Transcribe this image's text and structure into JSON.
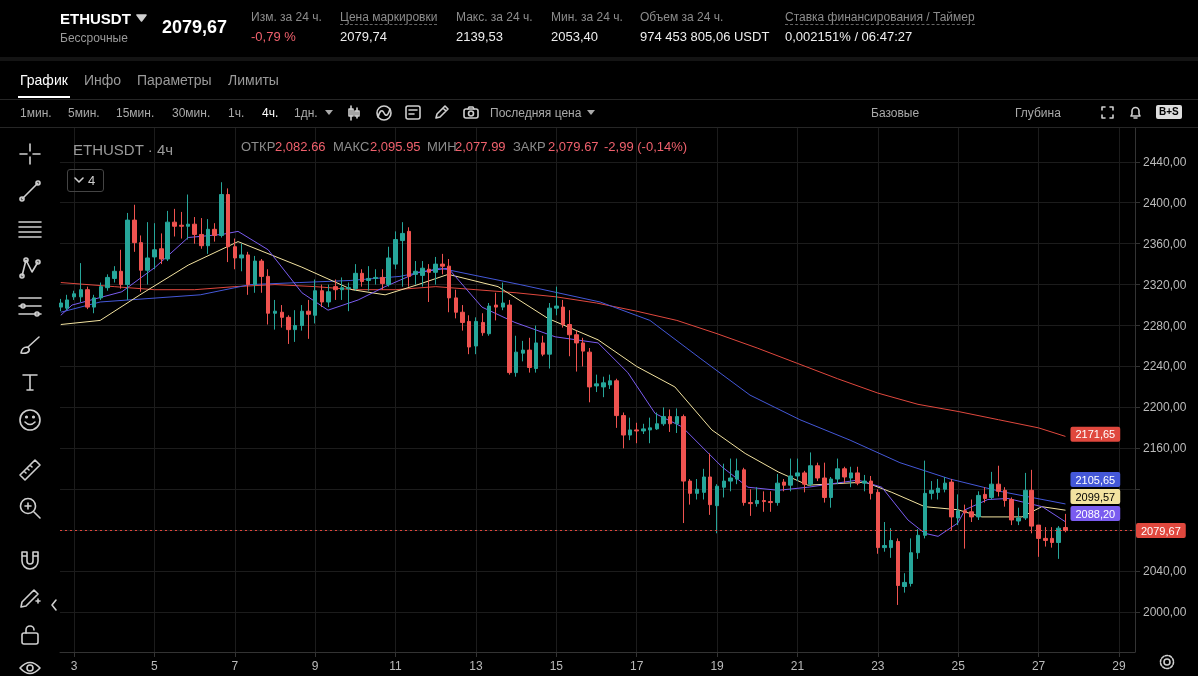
{
  "chart_data": {
    "type": "candlestick",
    "title": "ETHUSDT · 4ч",
    "annotations": [
      "ETHUSDT",
      "Бессрочные",
      "2079,67",
      "Изм. за 24 ч.",
      "-0,79 %",
      "Цена маркировки",
      "2079,74",
      "Макс. за 24 ч.",
      "2139,53",
      "Мин. за 24 ч.",
      "2053,40",
      "Объем за 24 ч.",
      "974 453 805,06 USDT",
      "Ставка финансирования / Таймер",
      "0,002151% / 06:47:27",
      "График",
      "Инфо",
      "Параметры",
      "Лимиты",
      "1мин.",
      "5мин.",
      "15мин.",
      "30мин.",
      "1ч.",
      "4ч.",
      "1дн.",
      "Последняя цена",
      "Базовые",
      "Глубина",
      "ОТКР",
      "2,082.66",
      "МАКС",
      "2,095.95",
      "МИН",
      "2,077.99",
      "ЗАКР",
      "2,079.67",
      "-2,99 (-0,14%)",
      "4",
      "B+S"
    ],
    "x": [
      2.67,
      2.83,
      3,
      3.17,
      3.33,
      3.5,
      3.67,
      3.83,
      4,
      4.17,
      4.33,
      4.5,
      4.67,
      4.83,
      5,
      5.17,
      5.33,
      5.5,
      5.67,
      5.83,
      6,
      6.17,
      6.33,
      6.5,
      6.67,
      6.83,
      7,
      7.17,
      7.33,
      7.5,
      7.67,
      7.83,
      8,
      8.17,
      8.33,
      8.5,
      8.67,
      8.83,
      9,
      9.17,
      9.33,
      9.5,
      9.67,
      9.83,
      10,
      10.17,
      10.33,
      10.5,
      10.67,
      10.83,
      11,
      11.17,
      11.33,
      11.5,
      11.67,
      11.83,
      12,
      12.17,
      12.33,
      12.5,
      12.67,
      12.83,
      13,
      13.17,
      13.33,
      13.5,
      13.67,
      13.83,
      14,
      14.17,
      14.33,
      14.5,
      14.67,
      14.83,
      15,
      15.17,
      15.33,
      15.5,
      15.67,
      15.83,
      16,
      16.17,
      16.33,
      16.5,
      16.67,
      16.83,
      17,
      17.17,
      17.33,
      17.5,
      17.67,
      17.83,
      18,
      18.17,
      18.33,
      18.5,
      18.67,
      18.83,
      19,
      19.17,
      19.33,
      19.5,
      19.67,
      19.83,
      20,
      20.17,
      20.33,
      20.5,
      20.67,
      20.83,
      21,
      21.17,
      21.33,
      21.5,
      21.67,
      21.83,
      22,
      22.17,
      22.33,
      22.5,
      22.67,
      22.83,
      23,
      23.17,
      23.33,
      23.5,
      23.67,
      23.83,
      24,
      24.17,
      24.33,
      24.5,
      24.67,
      24.83,
      25,
      25.17,
      25.33,
      25.5,
      25.67,
      25.83,
      26,
      26.17,
      26.33,
      26.5,
      26.67,
      26.83,
      27,
      27.17,
      27.33,
      27.5,
      27.67
    ],
    "ohlc": [
      [
        2298,
        2306,
        2294,
        2302
      ],
      [
        2297,
        2310,
        2295,
        2305
      ],
      [
        2308,
        2314,
        2305,
        2311
      ],
      [
        2308,
        2341,
        2303,
        2315
      ],
      [
        2315,
        2318,
        2296,
        2298
      ],
      [
        2298,
        2310,
        2292,
        2307
      ],
      [
        2307,
        2322,
        2305,
        2318
      ],
      [
        2317,
        2330,
        2314,
        2327
      ],
      [
        2326,
        2338,
        2322,
        2333
      ],
      [
        2333,
        2354,
        2316,
        2320
      ],
      [
        2320,
        2390,
        2305,
        2383
      ],
      [
        2383,
        2398,
        2352,
        2361
      ],
      [
        2361,
        2368,
        2313,
        2334
      ],
      [
        2334,
        2381,
        2320,
        2346
      ],
      [
        2347,
        2380,
        2335,
        2354
      ],
      [
        2355,
        2370,
        2340,
        2345
      ],
      [
        2345,
        2392,
        2343,
        2381
      ],
      [
        2381,
        2394,
        2367,
        2377
      ],
      [
        2378,
        2391,
        2365,
        2377
      ],
      [
        2377,
        2408,
        2364,
        2379
      ],
      [
        2379,
        2386,
        2360,
        2369
      ],
      [
        2369,
        2385,
        2355,
        2358
      ],
      [
        2358,
        2384,
        2350,
        2374
      ],
      [
        2374,
        2380,
        2362,
        2368
      ],
      [
        2368,
        2420,
        2366,
        2408
      ],
      [
        2408,
        2414,
        2342,
        2357
      ],
      [
        2357,
        2365,
        2335,
        2346
      ],
      [
        2346,
        2360,
        2333,
        2349
      ],
      [
        2349,
        2352,
        2310,
        2320
      ],
      [
        2320,
        2348,
        2312,
        2343
      ],
      [
        2343,
        2345,
        2312,
        2328
      ],
      [
        2328,
        2335,
        2281,
        2292
      ],
      [
        2292,
        2305,
        2276,
        2294
      ],
      [
        2293,
        2300,
        2278,
        2288
      ],
      [
        2288,
        2290,
        2262,
        2276
      ],
      [
        2276,
        2295,
        2264,
        2280
      ],
      [
        2280,
        2300,
        2275,
        2294
      ],
      [
        2294,
        2305,
        2267,
        2291
      ],
      [
        2290,
        2325,
        2282,
        2314
      ],
      [
        2314,
        2320,
        2298,
        2303
      ],
      [
        2303,
        2320,
        2298,
        2313
      ],
      [
        2318,
        2325,
        2305,
        2315
      ],
      [
        2315,
        2327,
        2305,
        2317
      ],
      [
        2316,
        2322,
        2294,
        2317
      ],
      [
        2316,
        2340,
        2314,
        2331
      ],
      [
        2331,
        2335,
        2318,
        2323
      ],
      [
        2324,
        2338,
        2314,
        2326
      ],
      [
        2326,
        2335,
        2320,
        2327
      ],
      [
        2327,
        2335,
        2315,
        2321
      ],
      [
        2320,
        2357,
        2318,
        2346
      ],
      [
        2340,
        2372,
        2335,
        2364
      ],
      [
        2363,
        2381,
        2318,
        2370
      ],
      [
        2372,
        2376,
        2318,
        2328
      ],
      [
        2330,
        2343,
        2320,
        2333
      ],
      [
        2329,
        2343,
        2318,
        2336
      ],
      [
        2335,
        2340,
        2303,
        2332
      ],
      [
        2332,
        2347,
        2320,
        2340
      ],
      [
        2340,
        2350,
        2330,
        2338
      ],
      [
        2338,
        2345,
        2293,
        2307
      ],
      [
        2307,
        2315,
        2287,
        2293
      ],
      [
        2293,
        2300,
        2275,
        2283
      ],
      [
        2284,
        2290,
        2252,
        2259
      ],
      [
        2260,
        2288,
        2252,
        2284
      ],
      [
        2283,
        2292,
        2270,
        2273
      ],
      [
        2272,
        2302,
        2270,
        2299
      ],
      [
        2300,
        2312,
        2285,
        2298
      ],
      [
        2298,
        2322,
        2295,
        2302
      ],
      [
        2300,
        2305,
        2232,
        2234
      ],
      [
        2234,
        2270,
        2230,
        2254
      ],
      [
        2253,
        2265,
        2245,
        2256
      ],
      [
        2256,
        2268,
        2234,
        2239
      ],
      [
        2238,
        2280,
        2234,
        2263
      ],
      [
        2263,
        2270,
        2250,
        2252
      ],
      [
        2252,
        2302,
        2238,
        2297
      ],
      [
        2297,
        2318,
        2290,
        2299
      ],
      [
        2298,
        2305,
        2278,
        2281
      ],
      [
        2281,
        2295,
        2250,
        2271
      ],
      [
        2271,
        2275,
        2235,
        2263
      ],
      [
        2263,
        2268,
        2240,
        2255
      ],
      [
        2254,
        2258,
        2205,
        2220
      ],
      [
        2221,
        2232,
        2215,
        2223
      ],
      [
        2220,
        2230,
        2210,
        2224
      ],
      [
        2222,
        2232,
        2218,
        2226
      ],
      [
        2226,
        2228,
        2180,
        2192
      ],
      [
        2192,
        2195,
        2160,
        2173
      ],
      [
        2173,
        2190,
        2168,
        2178
      ],
      [
        2178,
        2185,
        2165,
        2177
      ],
      [
        2177,
        2184,
        2174,
        2179
      ],
      [
        2178,
        2190,
        2165,
        2180
      ],
      [
        2179,
        2195,
        2178,
        2184
      ],
      [
        2184,
        2200,
        2182,
        2191
      ],
      [
        2191,
        2198,
        2176,
        2184
      ],
      [
        2184,
        2199,
        2175,
        2191
      ],
      [
        2191,
        2193,
        2087,
        2128
      ],
      [
        2128,
        2130,
        2105,
        2116
      ],
      [
        2116,
        2130,
        2110,
        2120
      ],
      [
        2117,
        2140,
        2110,
        2132
      ],
      [
        2132,
        2155,
        2095,
        2105
      ],
      [
        2104,
        2125,
        2077,
        2123
      ],
      [
        2122,
        2145,
        2112,
        2128
      ],
      [
        2128,
        2150,
        2118,
        2131
      ],
      [
        2130,
        2150,
        2125,
        2138
      ],
      [
        2139,
        2141,
        2104,
        2107
      ],
      [
        2107,
        2120,
        2094,
        2106
      ],
      [
        2106,
        2122,
        2103,
        2109
      ],
      [
        2109,
        2118,
        2098,
        2108
      ],
      [
        2108,
        2118,
        2098,
        2107
      ],
      [
        2107,
        2135,
        2104,
        2126
      ],
      [
        2127,
        2130,
        2118,
        2124
      ],
      [
        2124,
        2150,
        2118,
        2133
      ],
      [
        2133,
        2150,
        2128,
        2136
      ],
      [
        2136,
        2138,
        2117,
        2125
      ],
      [
        2125,
        2156,
        2123,
        2143
      ],
      [
        2143,
        2146,
        2128,
        2131
      ],
      [
        2131,
        2146,
        2107,
        2112
      ],
      [
        2112,
        2132,
        2102,
        2130
      ],
      [
        2130,
        2150,
        2125,
        2140
      ],
      [
        2140,
        2142,
        2126,
        2132
      ],
      [
        2131,
        2142,
        2122,
        2136
      ],
      [
        2136,
        2142,
        2124,
        2126
      ],
      [
        2126,
        2134,
        2118,
        2128
      ],
      [
        2128,
        2133,
        2110,
        2116
      ],
      [
        2117,
        2120,
        2057,
        2063
      ],
      [
        2063,
        2088,
        2059,
        2065
      ],
      [
        2063,
        2082,
        2053,
        2070
      ],
      [
        2069,
        2072,
        2007,
        2026
      ],
      [
        2025,
        2038,
        2019,
        2029
      ],
      [
        2028,
        2072,
        2025,
        2058
      ],
      [
        2058,
        2081,
        2052,
        2075
      ],
      [
        2075,
        2148,
        2072,
        2116
      ],
      [
        2116,
        2128,
        2110,
        2119
      ],
      [
        2117,
        2130,
        2110,
        2121
      ],
      [
        2120,
        2132,
        2117,
        2126
      ],
      [
        2127,
        2130,
        2080,
        2093
      ],
      [
        2092,
        2115,
        2085,
        2099
      ],
      [
        2099,
        2105,
        2062,
        2097
      ],
      [
        2098,
        2110,
        2088,
        2093
      ],
      [
        2093,
        2118,
        2090,
        2114
      ],
      [
        2115,
        2122,
        2107,
        2111
      ],
      [
        2112,
        2137,
        2110,
        2125
      ],
      [
        2125,
        2143,
        2113,
        2118
      ],
      [
        2119,
        2122,
        2103,
        2109
      ],
      [
        2110,
        2112,
        2085,
        2090
      ],
      [
        2089,
        2102,
        2085,
        2092
      ],
      [
        2092,
        2136,
        2090,
        2119
      ],
      [
        2119,
        2139,
        2077,
        2084
      ],
      [
        2085,
        2085,
        2054,
        2072
      ],
      [
        2072,
        2083,
        2064,
        2070
      ],
      [
        2072,
        2083,
        2063,
        2068
      ],
      [
        2068,
        2084,
        2052,
        2082
      ],
      [
        2082.66,
        2095.95,
        2077.99,
        2079.67
      ]
    ],
    "series": [
      {
        "type": "line",
        "color": "#e0483e",
        "x": [
          2.67,
          4,
          5,
          6,
          7,
          8,
          9,
          10,
          11,
          12,
          13,
          14,
          15,
          16,
          17,
          18,
          19,
          20,
          21,
          22,
          23,
          24,
          25,
          26,
          27,
          27.67
        ],
        "values": [
          2322,
          2318,
          2315,
          2315,
          2318,
          2320,
          2318,
          2315,
          2315,
          2318,
          2315,
          2312,
          2308,
          2302,
          2294,
          2285,
          2272,
          2258,
          2243,
          2228,
          2214,
          2203,
          2196,
          2188,
          2180,
          2171.65
        ],
        "value_labels": [
          null,
          null,
          null,
          null,
          null,
          null,
          null,
          null,
          null,
          null,
          null,
          null,
          null,
          null,
          null,
          null,
          null,
          null,
          null,
          null,
          null,
          null,
          null,
          null,
          null,
          "2171,65"
        ]
      },
      {
        "type": "line",
        "color": "#4458d8",
        "x": [
          2.67,
          3.65,
          6.14,
          7.38,
          8.62,
          9.87,
          11.11,
          12.11,
          13.1,
          14.1,
          16.09,
          17.33,
          18.58,
          19.82,
          21.06,
          22.31,
          23.55,
          24.8,
          26.04,
          27.67
        ],
        "values": [
          2293,
          2303,
          2310,
          2320,
          2322,
          2324,
          2328,
          2336,
          2328,
          2320,
          2303,
          2285,
          2248,
          2212,
          2188,
          2168,
          2146,
          2130,
          2118,
          2105.65
        ],
        "value_labels": [
          null,
          null,
          null,
          null,
          null,
          null,
          null,
          null,
          null,
          null,
          null,
          null,
          null,
          null,
          null,
          null,
          null,
          null,
          null,
          "2105,65"
        ]
      },
      {
        "type": "line",
        "color": "#f3e3a0",
        "x": [
          2.67,
          3.65,
          4.64,
          5.84,
          7.08,
          8.67,
          9.92,
          10.74,
          11.56,
          12.31,
          13.55,
          14.79,
          16.04,
          17,
          17.95,
          18.87,
          19.7,
          20.52,
          21.26,
          22.68,
          23.35,
          24.17,
          24.99,
          25.59,
          26.59,
          27.08,
          27.67
        ],
        "values": [
          2281,
          2285,
          2310,
          2339,
          2362,
          2337,
          2315,
          2310,
          2320,
          2330,
          2318,
          2287,
          2266,
          2240,
          2220,
          2178,
          2155,
          2137,
          2124,
          2127,
          2117,
          2103,
          2100,
          2093,
          2093,
          2103,
          2099.57
        ],
        "value_labels": [
          null,
          null,
          null,
          null,
          null,
          null,
          null,
          null,
          null,
          null,
          null,
          null,
          null,
          null,
          null,
          null,
          null,
          null,
          null,
          null,
          null,
          null,
          null,
          null,
          null,
          null,
          "2099,57"
        ]
      },
      {
        "type": "line",
        "color": "#7a5cf0",
        "x": [
          2.67,
          2.95,
          4.19,
          5.02,
          5.84,
          6.68,
          7.08,
          7.83,
          8.67,
          9.32,
          10.07,
          10.74,
          11.56,
          12.31,
          13.15,
          13.97,
          14.97,
          16.04,
          16.78,
          17.46,
          18.13,
          19.12,
          19.77,
          20.52,
          21.26,
          22.51,
          23.1,
          23.75,
          24.17,
          24.5,
          24.99,
          25.17,
          25.74,
          26.24,
          27.09,
          27.67
        ],
        "values": [
          2290,
          2300,
          2313,
          2337,
          2366,
          2369,
          2372,
          2354,
          2312,
          2295,
          2305,
          2318,
          2332,
          2336,
          2298,
          2283,
          2269,
          2263,
          2234,
          2194,
          2181,
          2142,
          2122,
          2119,
          2122,
          2129,
          2122,
          2090,
          2077,
          2074,
          2087,
          2100,
          2110,
          2111,
          2103,
          2088.2
        ],
        "value_labels": [
          null,
          null,
          null,
          null,
          null,
          null,
          null,
          null,
          null,
          null,
          null,
          null,
          null,
          null,
          null,
          null,
          null,
          null,
          null,
          null,
          null,
          null,
          null,
          null,
          null,
          null,
          null,
          null,
          null,
          null,
          null,
          null,
          null,
          null,
          null,
          "2088,20"
        ]
      }
    ],
    "ref_lines": [
      {
        "axis": "y",
        "value": 2079.67,
        "label": "2079,67",
        "color": "#e0483e",
        "line_style": "dotted"
      }
    ],
    "xlim": [
      2.65,
      29.4
    ],
    "xticks": [
      3,
      5,
      7,
      9,
      11,
      13,
      15,
      17,
      19,
      21,
      23,
      25,
      27,
      29
    ],
    "ylim": [
      1961,
      2473
    ],
    "yticks": [
      {
        "value": 2000,
        "label": "2000,00"
      },
      {
        "value": 2040,
        "label": "2040,00"
      },
      {
        "value": 2080,
        "label": null
      },
      {
        "value": 2120,
        "label": null
      },
      {
        "value": 2160,
        "label": "2160,00"
      },
      {
        "value": 2200,
        "label": "2200,00"
      },
      {
        "value": 2240,
        "label": "2240,00"
      },
      {
        "value": 2280,
        "label": "2280,00"
      },
      {
        "value": 2320,
        "label": "2320,00"
      },
      {
        "value": 2360,
        "label": "2360,00"
      },
      {
        "value": 2400,
        "label": "2400,00"
      },
      {
        "value": 2440,
        "label": "2440,00"
      }
    ],
    "grid": true
  }
}
